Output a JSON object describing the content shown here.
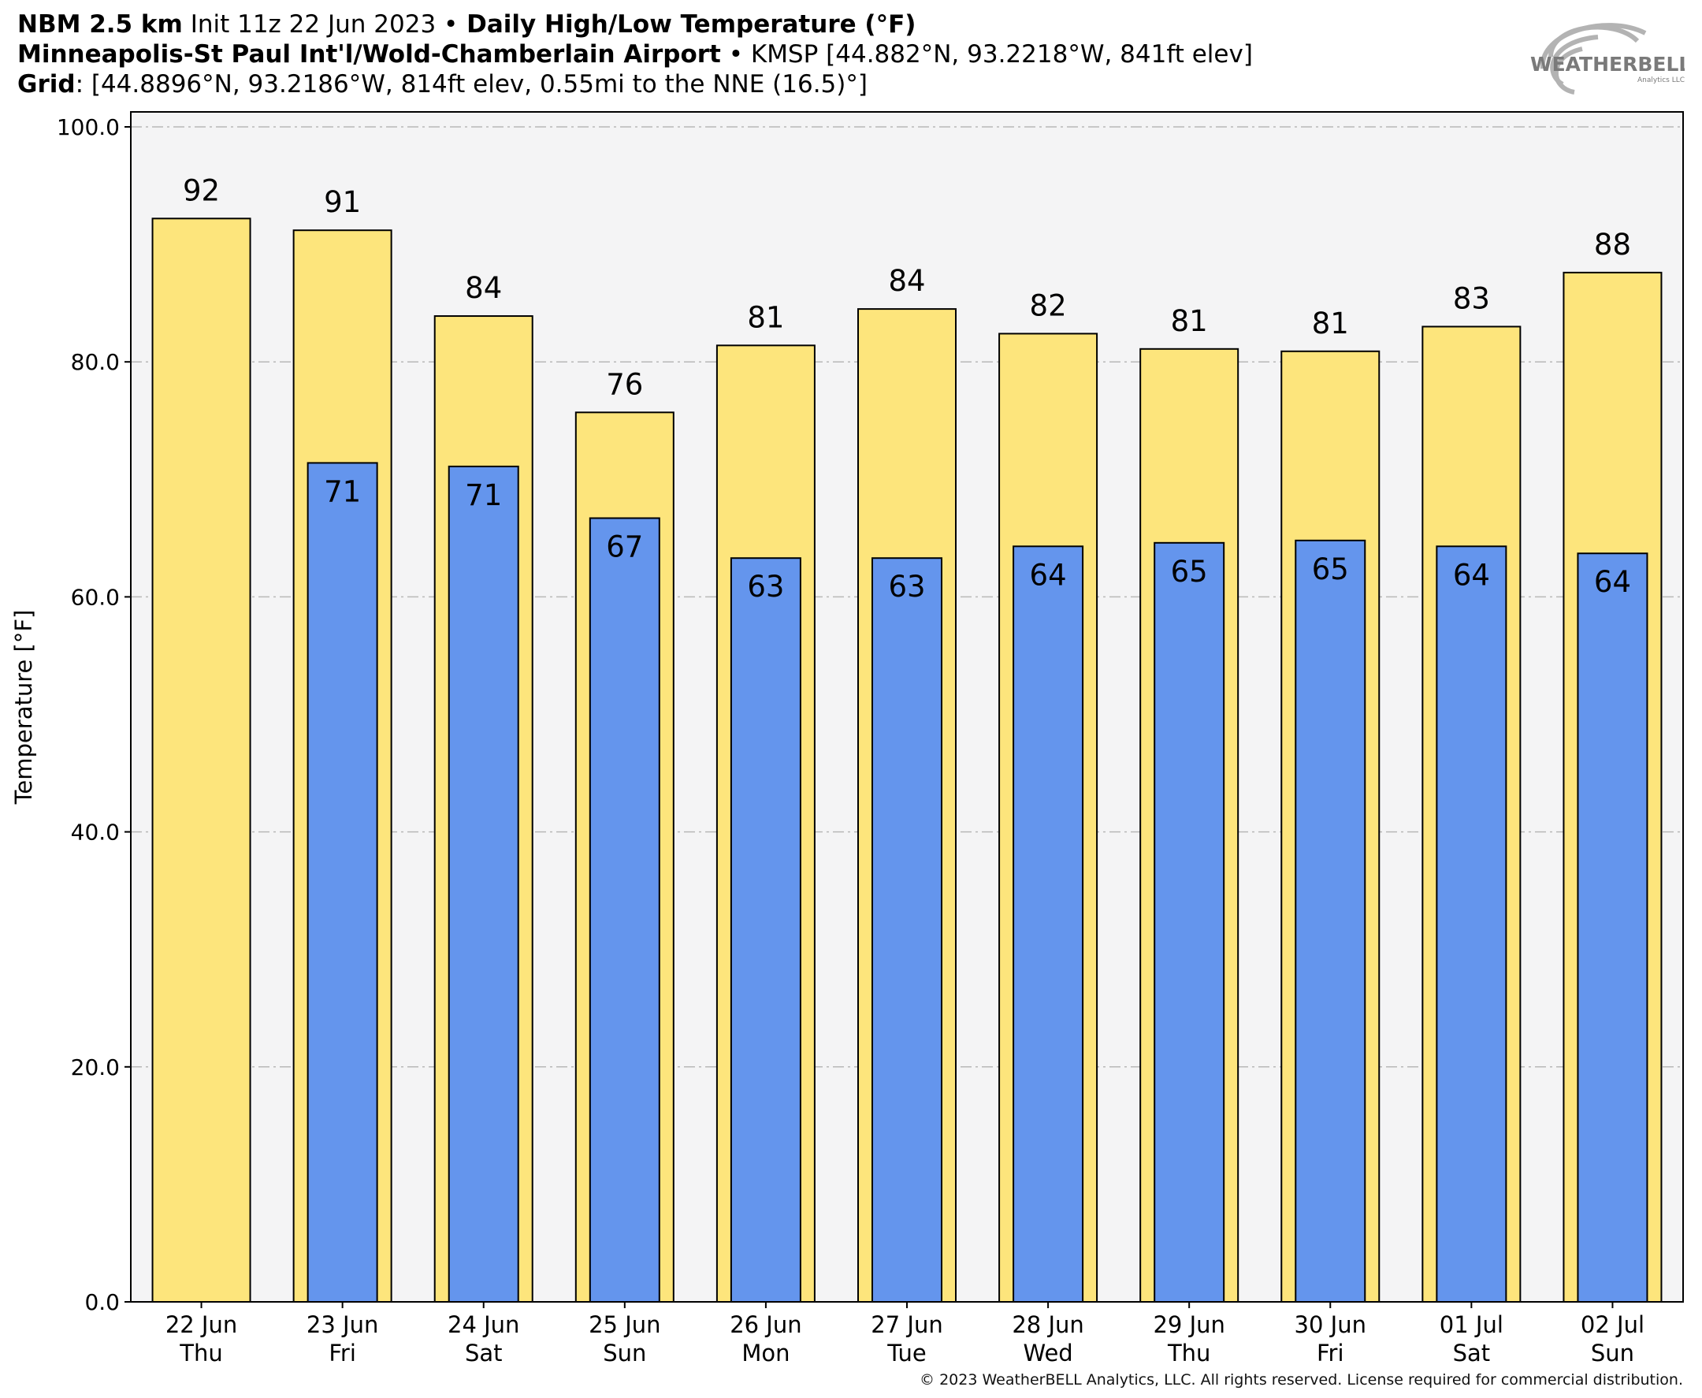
{
  "header": {
    "line1": {
      "model": "NBM 2.5 km",
      "init": " Init 11z 22 Jun 2023 ",
      "sep": "•",
      "product": " Daily High/Low Temperature (°F)"
    },
    "line2": {
      "station": "Minneapolis-St Paul Int'l/Wold-Chamberlain Airport",
      "sep": " • ",
      "details": "KMSP [44.882°N, 93.2218°W, 841ft elev]"
    },
    "line3": {
      "label": "Grid",
      "details": ": [44.8896°N, 93.2186°W, 814ft elev, 0.55mi to the NNE (16.5)°]"
    }
  },
  "logo": {
    "text": "WEATHERBELL",
    "sub": "Analytics LLC",
    "color": "#8a8a8a"
  },
  "copyright": "© 2023 WeatherBELL Analytics, LLC. All rights reserved. License required for commercial distribution.",
  "chart_data": {
    "type": "bar",
    "title": "Daily High/Low Temperature (°F)",
    "ylabel": "Temperature [°F]",
    "ylim": [
      0,
      100
    ],
    "yticks": [
      "0.0",
      "20.0",
      "40.0",
      "60.0",
      "80.0",
      "100.0"
    ],
    "ytick_values": [
      0,
      20,
      40,
      60,
      80,
      100
    ],
    "grid": true,
    "categories": [
      {
        "date": "22 Jun",
        "day": "Thu"
      },
      {
        "date": "23 Jun",
        "day": "Fri"
      },
      {
        "date": "24 Jun",
        "day": "Sat"
      },
      {
        "date": "25 Jun",
        "day": "Sun"
      },
      {
        "date": "26 Jun",
        "day": "Mon"
      },
      {
        "date": "27 Jun",
        "day": "Tue"
      },
      {
        "date": "28 Jun",
        "day": "Wed"
      },
      {
        "date": "29 Jun",
        "day": "Thu"
      },
      {
        "date": "30 Jun",
        "day": "Fri"
      },
      {
        "date": "01 Jul",
        "day": "Sat"
      },
      {
        "date": "02 Jul",
        "day": "Sun"
      }
    ],
    "series": [
      {
        "color": "#fde57c",
        "values": [
          92.2,
          91.2,
          83.9,
          75.7,
          81.4,
          84.5,
          82.4,
          81.1,
          80.9,
          83.0,
          87.6
        ],
        "labels": [
          "92",
          "91",
          "84",
          "76",
          "81",
          "84",
          "82",
          "81",
          "81",
          "83",
          "88"
        ]
      },
      {
        "color": "#6495ed",
        "values": [
          null,
          71.4,
          71.1,
          66.7,
          63.3,
          63.3,
          64.3,
          64.6,
          64.8,
          64.3,
          63.7
        ],
        "labels": [
          null,
          "71",
          "71",
          "67",
          "63",
          "63",
          "64",
          "65",
          "65",
          "64",
          "64"
        ]
      }
    ],
    "plot_background": "#f4f4f5",
    "grid_color": "#b8b8b8"
  }
}
